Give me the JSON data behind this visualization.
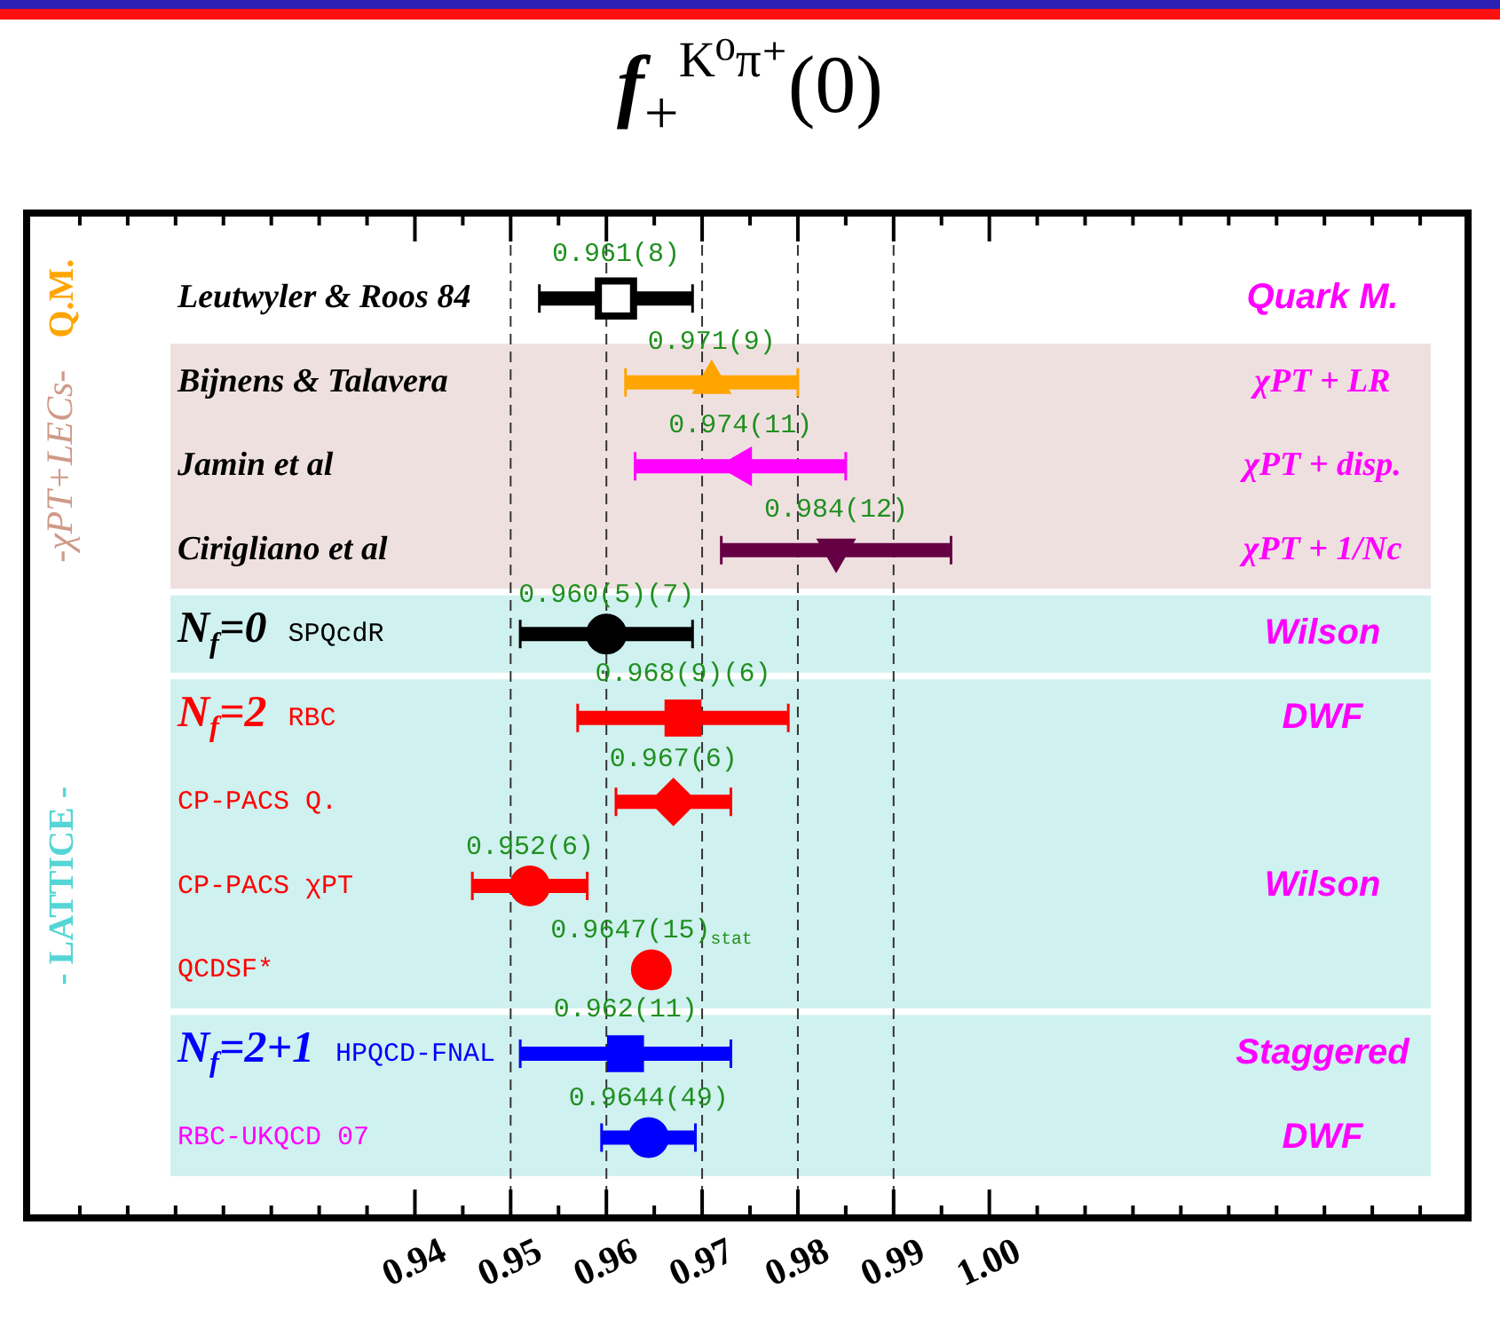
{
  "chart_data": {
    "type": "scatter",
    "title": "f$_{+}$$^{K⁰π⁺}$(0)",
    "orientation": "horizontal",
    "categories": [
      "Leutwyler & Roos 84",
      "Bijnens & Talavera",
      "Jamin et al",
      "Cirigliano et al",
      "SPQcdR",
      "RBC",
      "CP-PACS Q.",
      "CP-PACS χPT",
      "QCDSF*",
      "HPQCD-FNAL",
      "RBC-UKQCD 07"
    ],
    "series": [
      {
        "marker": "square",
        "colors": [
          "#000000",
          null,
          null,
          null,
          null,
          "#ff0000",
          null,
          null,
          null,
          "#0000ff",
          null
        ],
        "values": [
          0.961,
          null,
          null,
          null,
          null,
          0.968,
          null,
          null,
          null,
          0.962,
          null
        ],
        "errors": [
          0.008,
          null,
          null,
          null,
          null,
          0.011,
          null,
          null,
          null,
          0.011,
          null
        ],
        "value_labels": [
          "0.961(8)",
          null,
          null,
          null,
          null,
          "0.968(9)(6)",
          null,
          null,
          null,
          "0.962(11)",
          null
        ]
      },
      {
        "marker": "triangle",
        "colors": [
          null,
          "#ffa500",
          "#ff00ff",
          "#660044",
          null,
          null,
          null,
          null,
          null,
          null,
          null
        ],
        "values": [
          null,
          0.971,
          0.974,
          0.984,
          null,
          null,
          null,
          null,
          null,
          null,
          null
        ],
        "errors": [
          null,
          0.009,
          0.011,
          0.012,
          null,
          null,
          null,
          null,
          null,
          null,
          null
        ],
        "value_labels": [
          null,
          "0.971(9)",
          "0.974(11)",
          "0.984(12)",
          null,
          null,
          null,
          null,
          null,
          null,
          null
        ]
      },
      {
        "marker": "circle",
        "colors": [
          null,
          null,
          null,
          null,
          "#000000",
          null,
          null,
          "#ff0000",
          "#ff0000",
          null,
          "#0000ff"
        ],
        "values": [
          null,
          null,
          null,
          null,
          0.96,
          null,
          null,
          0.952,
          0.9647,
          null,
          0.9644
        ],
        "errors": [
          null,
          null,
          null,
          null,
          0.009,
          null,
          null,
          0.006,
          null,
          null,
          0.0049
        ],
        "value_labels": [
          null,
          null,
          null,
          null,
          "0.960(5)(7)",
          null,
          null,
          "0.952(6)",
          "0.9647(15)$_{stat}$",
          null,
          "0.9644(49)"
        ]
      },
      {
        "marker": "diamond",
        "colors": [
          null,
          null,
          null,
          null,
          null,
          null,
          "#ff0000",
          null,
          null,
          null,
          null
        ],
        "values": [
          null,
          null,
          null,
          null,
          null,
          null,
          0.967,
          null,
          null,
          null,
          null
        ],
        "errors": [
          null,
          null,
          null,
          null,
          null,
          null,
          0.006,
          null,
          null,
          null,
          null
        ],
        "value_labels": [
          null,
          null,
          null,
          null,
          null,
          null,
          "0.967(6)",
          null,
          null,
          null,
          null
        ]
      }
    ],
    "xlim": [
      0.9,
      1.05
    ],
    "xticks": [
      {
        "value": 0.905,
        "label": null
      },
      {
        "value": 0.91,
        "label": null
      },
      {
        "value": 0.915,
        "label": null
      },
      {
        "value": 0.92,
        "label": null
      },
      {
        "value": 0.925,
        "label": null
      },
      {
        "value": 0.93,
        "label": null
      },
      {
        "value": 0.935,
        "label": null
      },
      0.94,
      {
        "value": 0.945,
        "label": null
      },
      0.95,
      {
        "value": 0.955,
        "label": null
      },
      0.96,
      {
        "value": 0.965,
        "label": null
      },
      0.97,
      {
        "value": 0.975,
        "label": null
      },
      0.98,
      {
        "value": 0.985,
        "label": null
      },
      0.99,
      {
        "value": 0.995,
        "label": null
      },
      {
        "value": 1,
        "label": "1.00"
      },
      {
        "value": 1.005,
        "label": null
      },
      {
        "value": 1.01,
        "label": null
      },
      {
        "value": 1.015,
        "label": null
      },
      {
        "value": 1.02,
        "label": null
      },
      {
        "value": 1.025,
        "label": null
      },
      {
        "value": 1.03,
        "label": null
      },
      {
        "value": 1.035,
        "label": null
      },
      {
        "value": 1.04,
        "label": null
      },
      {
        "value": 1.045,
        "label": null
      }
    ],
    "ref_lines": [
      {
        "axis": "x",
        "value": 0.95,
        "line_style": "dashed",
        "color": "#333333"
      },
      {
        "axis": "x",
        "value": 0.96,
        "line_style": "dashed",
        "color": "#333333"
      },
      {
        "axis": "x",
        "value": 0.97,
        "line_style": "dashed",
        "color": "#333333"
      },
      {
        "axis": "x",
        "value": 0.98,
        "line_style": "dashed",
        "color": "#333333"
      },
      {
        "axis": "x",
        "value": 0.99,
        "line_style": "dashed",
        "color": "#333333"
      }
    ],
    "bands": [
      {
        "axis": "y",
        "from": "Bijnens & Talavera",
        "to": "Cirigliano et al",
        "color": "#efe0e0"
      },
      {
        "axis": "y",
        "from": "SPQcdR",
        "to": "SPQcdR",
        "label": "N$_{f}$=0",
        "color": "#cff1ef"
      },
      {
        "axis": "y",
        "from": "RBC",
        "to": "QCDSF*",
        "label": "N$_{f}$=2",
        "color": "#cff1ef"
      },
      {
        "axis": "y",
        "from": "HPQCD-FNAL",
        "to": "RBC-UKQCD 07",
        "label": "N$_{f}$=2+1",
        "color": "#cff1ef"
      }
    ],
    "annotations": [
      "Q.M.",
      "-χPT+LECs-",
      "- LATTICE -",
      "Quark M.",
      "χPT + LR",
      "χPT + disp.",
      "χPT + 1/Nc",
      "Wilson",
      "DWF",
      "Wilson",
      "Staggered",
      "DWF"
    ]
  }
}
